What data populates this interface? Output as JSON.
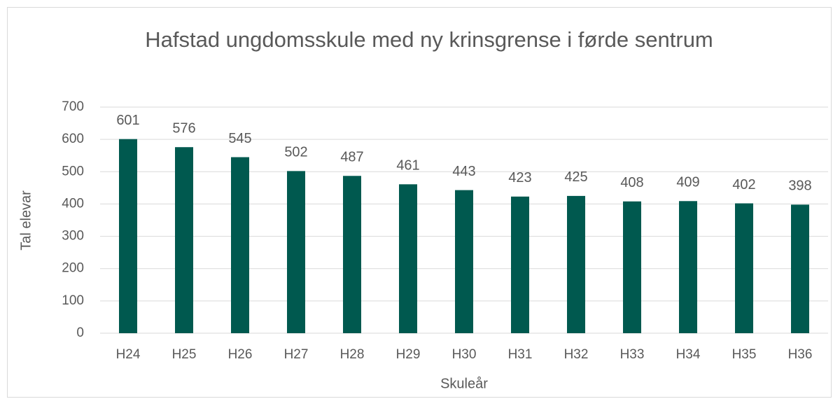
{
  "chart_data": {
    "type": "bar",
    "title": "Hafstad ungdomsskule med ny krinsgrense i førde sentrum",
    "x_label": "Skuleår",
    "y_label": "Tal elevar",
    "categories": [
      "H24",
      "H25",
      "H26",
      "H27",
      "H28",
      "H29",
      "H30",
      "H31",
      "H32",
      "H33",
      "H34",
      "H35",
      "H36"
    ],
    "values": [
      601,
      576,
      545,
      502,
      487,
      461,
      443,
      423,
      425,
      408,
      409,
      402,
      398
    ],
    "color": "#00594f",
    "ylim": [
      0,
      700
    ],
    "yticks": [
      0,
      100,
      200,
      300,
      400,
      500,
      600,
      700
    ],
    "grid": true
  }
}
